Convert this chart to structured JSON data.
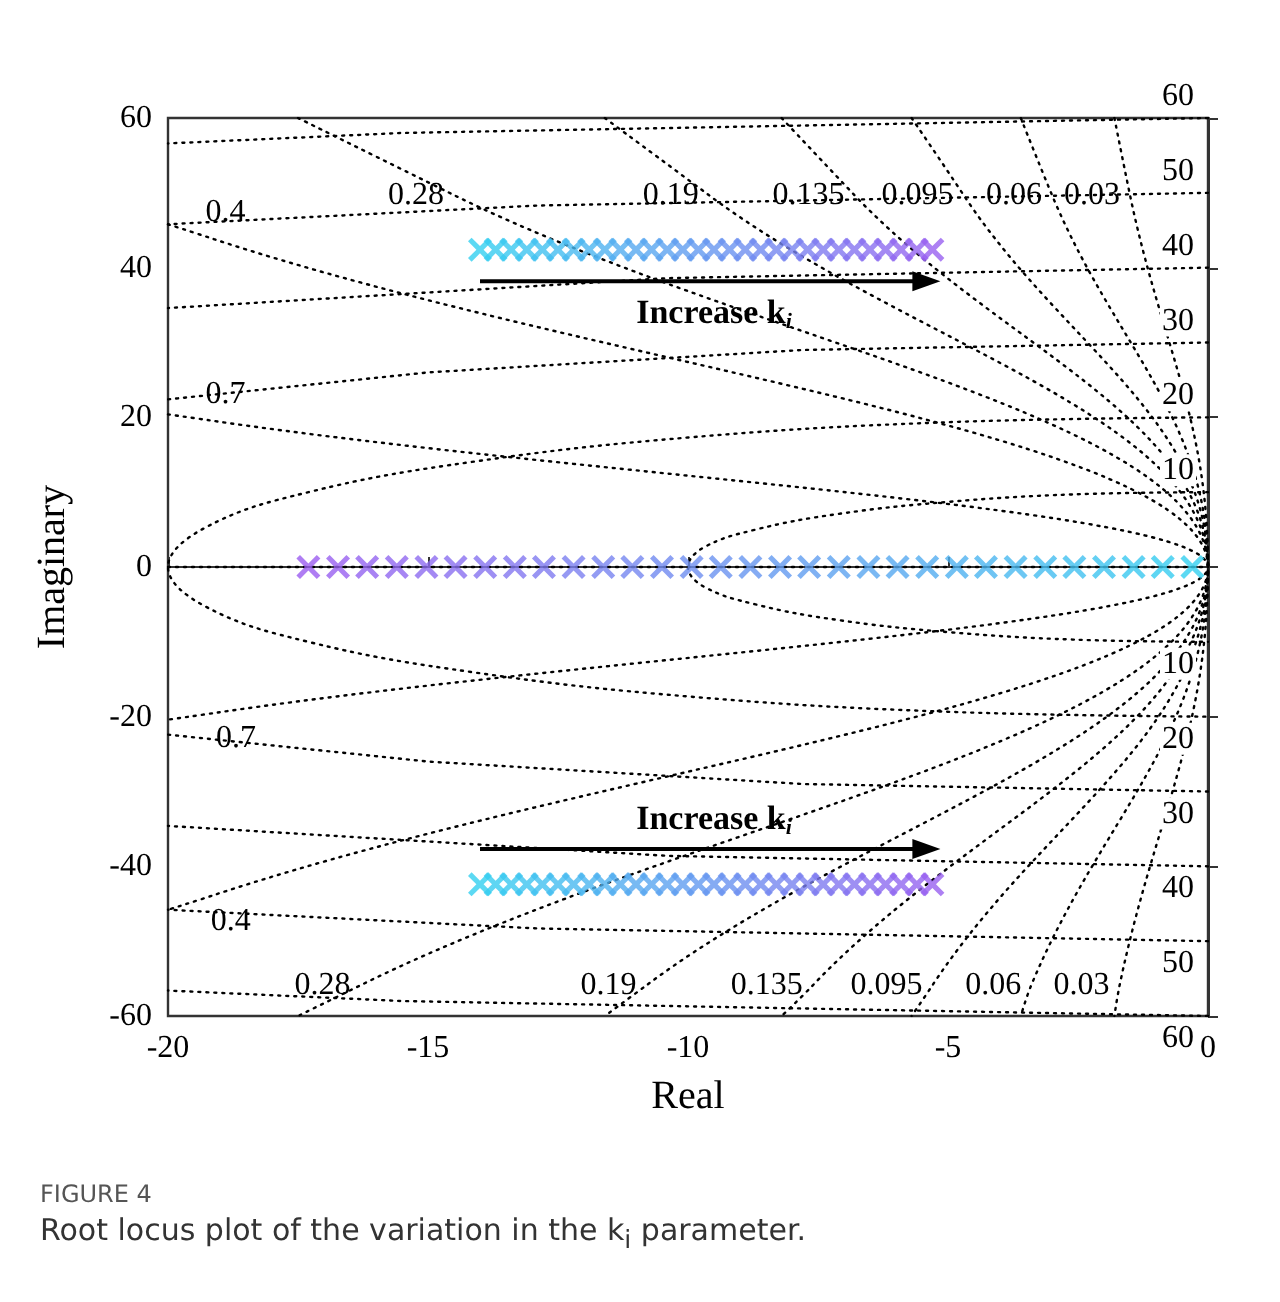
{
  "chart_data": {
    "type": "scatter",
    "xlabel": "Real",
    "ylabel": "Imaginary",
    "xlim": [
      -20,
      0
    ],
    "ylim": [
      -60,
      60
    ],
    "xticks": [
      -20,
      -15,
      -10,
      -5,
      0
    ],
    "yticks": [
      -60,
      -40,
      -20,
      0,
      20,
      40,
      60
    ],
    "legend": false,
    "series": [
      {
        "type": "line",
        "color": "#000000",
        "line_style": "dotted",
        "marker": "none",
        "x": [
          -20,
          0
        ],
        "values": [
          0,
          0
        ]
      },
      {
        "type": "line",
        "name": "0.7",
        "color": "#000000",
        "line_style": "dotted",
        "marker": "none",
        "x": [
          -20,
          -19.2,
          0,
          -19,
          -20
        ],
        "values": [
          20.4,
          19.6,
          0,
          -19.4,
          -20.4
        ]
      },
      {
        "type": "line",
        "name": "0.4",
        "color": "#000000",
        "line_style": "dotted",
        "marker": "none",
        "x": [
          -20,
          -19.2,
          0,
          -19.1,
          -20
        ],
        "values": [
          45.8,
          44,
          0,
          -43.8,
          -45.8
        ]
      },
      {
        "type": "line",
        "name": "0.28",
        "color": "#000000",
        "line_style": "dotted",
        "marker": "none",
        "x": [
          -17.5,
          -14.5,
          0,
          -16.3,
          -17.5
        ],
        "values": [
          60,
          49.7,
          0,
          -55.9,
          -60
        ]
      },
      {
        "type": "line",
        "name": "0.19",
        "color": "#000000",
        "line_style": "dotted",
        "marker": "none",
        "x": [
          -11.6,
          -9.6,
          0,
          -10.8,
          -11.6
        ],
        "values": [
          60,
          49.7,
          0,
          -55.9,
          -60
        ]
      },
      {
        "type": "line",
        "name": "0.135",
        "color": "#000000",
        "line_style": "dotted",
        "marker": "none",
        "x": [
          -8.2,
          -6.8,
          0,
          -7.6,
          -8.2
        ],
        "values": [
          60,
          49.7,
          0,
          -55.9,
          -60
        ]
      },
      {
        "type": "line",
        "name": "0.095",
        "color": "#000000",
        "line_style": "dotted",
        "marker": "none",
        "x": [
          -5.7,
          -4.7,
          0,
          -5.3,
          -5.7
        ],
        "values": [
          60,
          49.7,
          0,
          -55.9,
          -60
        ]
      },
      {
        "type": "line",
        "name": "0.06",
        "color": "#000000",
        "line_style": "dotted",
        "marker": "none",
        "x": [
          -3.6,
          -3,
          0,
          -3.4,
          -3.6
        ],
        "values": [
          60,
          49.7,
          0,
          -55.9,
          -60
        ]
      },
      {
        "type": "line",
        "name": "0.03",
        "color": "#000000",
        "line_style": "dotted",
        "marker": "none",
        "x": [
          -1.8,
          -1.5,
          0,
          -1.7,
          -1.8
        ],
        "values": [
          60,
          49.7,
          0,
          -55.9,
          -60
        ]
      },
      {
        "type": "line",
        "name": "10",
        "color": "#000000",
        "line_style": "dotted",
        "marker": "none",
        "x": [
          0,
          -2.6,
          -5,
          -7.1,
          -8.7,
          -9.7,
          -10,
          -9.7,
          -8.7,
          -7.1,
          -5,
          -2.6,
          0
        ],
        "values": [
          10,
          9.7,
          8.7,
          7.1,
          5,
          2.6,
          0,
          -2.6,
          -5,
          -7.1,
          -8.7,
          -9.7,
          -10
        ]
      },
      {
        "type": "line",
        "name": "20",
        "color": "#000000",
        "line_style": "dotted",
        "marker": "none",
        "x": [
          0,
          -5.2,
          -10,
          -14.1,
          -17.3,
          -19.3,
          -20,
          -19.3,
          -17.3,
          -14.1,
          -10,
          -5.2,
          0
        ],
        "values": [
          20,
          19.3,
          17.3,
          14.1,
          10,
          5.2,
          0,
          -5.2,
          -10,
          -14.1,
          -17.3,
          -19.3,
          -20
        ]
      },
      {
        "type": "line",
        "name": "30",
        "color": "#000000",
        "line_style": "dotted",
        "marker": "none",
        "x": [
          0,
          -7.8,
          -15,
          -20
        ],
        "values": [
          30,
          29,
          26,
          22.4
        ]
      },
      {
        "type": "line",
        "name": "30",
        "color": "#000000",
        "line_style": "dotted",
        "marker": "none",
        "x": [
          0,
          -7.8,
          -15,
          -20
        ],
        "values": [
          -30,
          -29,
          -26,
          -22.4
        ]
      },
      {
        "type": "line",
        "name": "40",
        "color": "#000000",
        "line_style": "dotted",
        "marker": "none",
        "x": [
          0,
          -10.4,
          -20
        ],
        "values": [
          40,
          38.6,
          34.6
        ]
      },
      {
        "type": "line",
        "name": "40",
        "color": "#000000",
        "line_style": "dotted",
        "marker": "none",
        "x": [
          0,
          -10.4,
          -20
        ],
        "values": [
          -40,
          -38.6,
          -34.6
        ]
      },
      {
        "type": "line",
        "name": "50",
        "color": "#000000",
        "line_style": "dotted",
        "marker": "none",
        "x": [
          0,
          -12.9,
          -20
        ],
        "values": [
          50,
          48.3,
          45.8
        ]
      },
      {
        "type": "line",
        "name": "50",
        "color": "#000000",
        "line_style": "dotted",
        "marker": "none",
        "x": [
          0,
          -12.9,
          -20
        ],
        "values": [
          -50,
          -48.3,
          -45.8
        ]
      },
      {
        "type": "line",
        "name": "60",
        "color": "#000000",
        "line_style": "dotted",
        "marker": "none",
        "x": [
          0,
          -15.5,
          -20
        ],
        "values": [
          60,
          58,
          56.6
        ]
      },
      {
        "type": "line",
        "name": "60",
        "color": "#000000",
        "line_style": "dotted",
        "marker": "none",
        "x": [
          0,
          -15.5,
          -20
        ],
        "values": [
          -60,
          -58,
          -56.6
        ]
      },
      {
        "marker": "cross",
        "x": [
          -17.3,
          -16.73,
          -16.17,
          -15.6,
          -15.03,
          -14.47,
          -13.9,
          -13.33,
          -12.77,
          -12.2,
          -11.63,
          -11.07,
          -10.5,
          -9.93,
          -9.37,
          -8.8,
          -8.23,
          -7.67,
          -7.1,
          -6.53,
          -5.97,
          -5.4,
          -4.83,
          -4.27,
          -3.7,
          -3.13,
          -2.57,
          -2.0,
          -1.43,
          -0.87,
          -0.3
        ],
        "values": [
          0,
          0,
          0,
          0,
          0,
          0,
          0,
          0,
          0,
          0,
          0,
          0,
          0,
          0,
          0,
          0,
          0,
          0,
          0,
          0,
          0,
          0,
          0,
          0,
          0,
          0,
          0,
          0,
          0,
          0,
          0
        ],
        "colors": [
          "#9b5cf0",
          "#9860f0",
          "#9464f0",
          "#9168f0",
          "#8d6bf0",
          "#8a6ff0",
          "#8673f0",
          "#8377f0",
          "#7f7bf0",
          "#7c7ff0",
          "#7883f0",
          "#7587f0",
          "#718af0",
          "#6e8ef0",
          "#6a92f0",
          "#6796f0",
          "#639af0",
          "#609ef0",
          "#5da2f0",
          "#59a6f0",
          "#56a9f0",
          "#52adf0",
          "#4fb1f0",
          "#4bb5f0",
          "#48b9f0",
          "#44bdf0",
          "#41c1f0",
          "#3dc4f0",
          "#3ac8f0",
          "#36ccf0",
          "#33d0f0"
        ]
      },
      {
        "marker": "cross",
        "x": [
          -14.0,
          -13.7,
          -13.4,
          -13.1,
          -12.8,
          -12.5,
          -12.2,
          -11.9,
          -11.6,
          -11.3,
          -11.0,
          -10.7,
          -10.4,
          -10.1,
          -9.8,
          -9.5,
          -9.2,
          -8.9,
          -8.6,
          -8.3,
          -8.0,
          -7.7,
          -7.4,
          -7.1,
          -6.8,
          -6.5,
          -6.2,
          -5.9,
          -5.6,
          -5.3
        ],
        "values": [
          42.4,
          42.4,
          42.4,
          42.4,
          42.4,
          42.4,
          42.4,
          42.4,
          42.4,
          42.4,
          42.4,
          42.4,
          42.4,
          42.4,
          42.4,
          42.4,
          42.4,
          42.4,
          42.4,
          42.4,
          42.4,
          42.4,
          42.4,
          42.4,
          42.4,
          42.4,
          42.4,
          42.4,
          42.4,
          42.4
        ],
        "colors": [
          "#33d0f0",
          "#36ccf0",
          "#3ac8f0",
          "#3dc4f0",
          "#41c1f0",
          "#44bdf0",
          "#48b9f0",
          "#4bb5f0",
          "#4fb1f0",
          "#52adf0",
          "#56a9f0",
          "#59a6f0",
          "#5da2f0",
          "#609ef0",
          "#639af0",
          "#6796f0",
          "#6a92f0",
          "#6e8ef0",
          "#718af0",
          "#7587f0",
          "#7883f0",
          "#7c7ff0",
          "#7f7bf0",
          "#8377f0",
          "#8673f0",
          "#8a6ff0",
          "#8d6bf0",
          "#9168f0",
          "#9464f0",
          "#9860f0"
        ]
      },
      {
        "marker": "cross",
        "x": [
          -14.0,
          -13.7,
          -13.4,
          -13.1,
          -12.8,
          -12.5,
          -12.2,
          -11.9,
          -11.6,
          -11.3,
          -11.0,
          -10.7,
          -10.4,
          -10.1,
          -9.8,
          -9.5,
          -9.2,
          -8.9,
          -8.6,
          -8.3,
          -8.0,
          -7.7,
          -7.4,
          -7.1,
          -6.8,
          -6.5,
          -6.2,
          -5.9,
          -5.6,
          -5.3
        ],
        "values": [
          -42.4,
          -42.4,
          -42.4,
          -42.4,
          -42.4,
          -42.4,
          -42.4,
          -42.4,
          -42.4,
          -42.4,
          -42.4,
          -42.4,
          -42.4,
          -42.4,
          -42.4,
          -42.4,
          -42.4,
          -42.4,
          -42.4,
          -42.4,
          -42.4,
          -42.4,
          -42.4,
          -42.4,
          -42.4,
          -42.4,
          -42.4,
          -42.4,
          -42.4,
          -42.4
        ],
        "colors": [
          "#33d0f0",
          "#36ccf0",
          "#3ac8f0",
          "#3dc4f0",
          "#41c1f0",
          "#44bdf0",
          "#48b9f0",
          "#4bb5f0",
          "#4fb1f0",
          "#52adf0",
          "#56a9f0",
          "#59a6f0",
          "#5da2f0",
          "#609ef0",
          "#639af0",
          "#6796f0",
          "#6a92f0",
          "#6e8ef0",
          "#718af0",
          "#7587f0",
          "#7883f0",
          "#7c7ff0",
          "#7f7bf0",
          "#8377f0",
          "#8673f0",
          "#8a6ff0",
          "#8d6bf0",
          "#9168f0",
          "#9464f0",
          "#9860f0"
        ]
      }
    ],
    "annotations": [
      {
        "text": "Increase k$_{i}$",
        "x": -9.5,
        "y": 38.2
      },
      {
        "text": "Increase k$_{i}$",
        "x": -9.5,
        "y": -37.7
      },
      "FIGURE 4",
      "Root locus plot of the variation in the k$_{i}$ parameter."
    ]
  }
}
